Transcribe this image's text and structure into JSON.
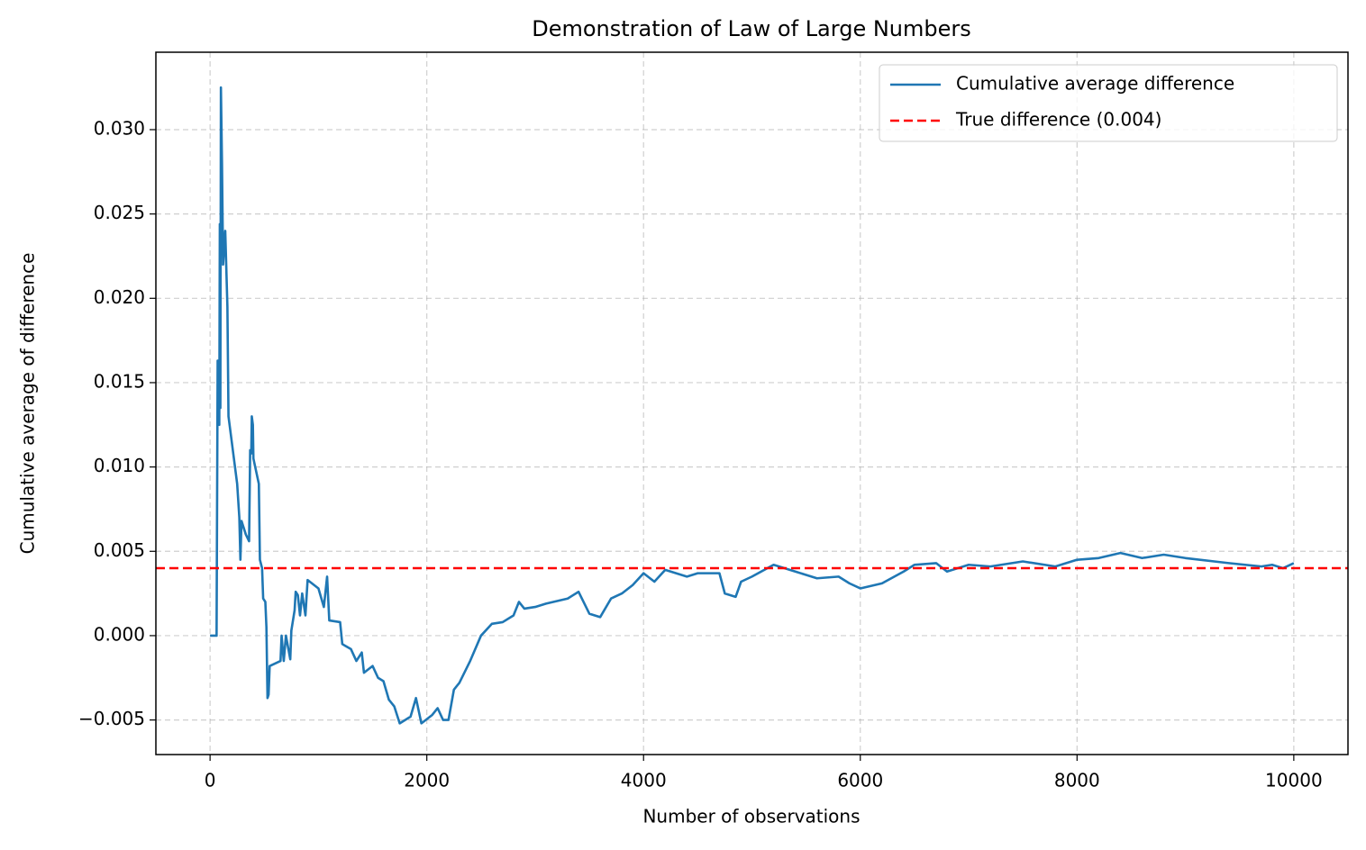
{
  "chart_data": {
    "type": "line",
    "title": "Demonstration of Law of Large Numbers",
    "x_label": "Number of observations",
    "y_label": "Cumulative average of difference",
    "x": [
      0,
      60,
      70,
      80,
      85,
      90,
      95,
      100,
      110,
      120,
      140,
      160,
      170,
      200,
      250,
      270,
      280,
      290,
      330,
      360,
      370,
      380,
      385,
      395,
      400,
      450,
      460,
      480,
      490,
      510,
      520,
      530,
      540,
      550,
      650,
      660,
      680,
      700,
      740,
      750,
      780,
      790,
      810,
      830,
      850,
      880,
      900,
      1000,
      1050,
      1080,
      1100,
      1200,
      1220,
      1300,
      1350,
      1400,
      1420,
      1500,
      1550,
      1600,
      1650,
      1700,
      1750,
      1850,
      1900,
      1950,
      2050,
      2100,
      2150,
      2200,
      2250,
      2300,
      2400,
      2500,
      2600,
      2700,
      2800,
      2850,
      2900,
      3000,
      3100,
      3300,
      3400,
      3500,
      3600,
      3700,
      3800,
      3900,
      4000,
      4100,
      4200,
      4400,
      4500,
      4700,
      4750,
      4850,
      4900,
      5000,
      5200,
      5400,
      5600,
      5800,
      5900,
      6000,
      6200,
      6400,
      6500,
      6700,
      6800,
      7000,
      7200,
      7500,
      7800,
      8000,
      8200,
      8400,
      8600,
      8800,
      9000,
      9400,
      9700,
      9800,
      9900,
      10000
    ],
    "series": [
      {
        "name": "Cumulative average difference",
        "color": "#1f77b4",
        "values": [
          0,
          0,
          0.0163,
          0.0163,
          0.0125,
          0.0244,
          0.0135,
          0.0325,
          0.028,
          0.022,
          0.024,
          0.0195,
          0.013,
          0.0115,
          0.009,
          0.007,
          0.0045,
          0.0068,
          0.006,
          0.0056,
          0.011,
          0.0108,
          0.013,
          0.0125,
          0.0105,
          0.009,
          0.0045,
          0.004,
          0.0022,
          0.002,
          0.0005,
          -0.0037,
          -0.0035,
          -0.0018,
          -0.0015,
          0,
          -0.0015,
          0,
          -0.0014,
          0.0003,
          0.0015,
          0.0026,
          0.0024,
          0.0012,
          0.0025,
          0.0012,
          0.0033,
          0.0028,
          0.0017,
          0.0035,
          0.0009,
          0.0008,
          -0.0005,
          -0.0008,
          -0.0015,
          -0.001,
          -0.0022,
          -0.0018,
          -0.0025,
          -0.0027,
          -0.0038,
          -0.0042,
          -0.0052,
          -0.0048,
          -0.0037,
          -0.0052,
          -0.0047,
          -0.0043,
          -0.005,
          -0.005,
          -0.0032,
          -0.0028,
          -0.0015,
          0,
          0.0007,
          0.0008,
          0.0012,
          0.002,
          0.0016,
          0.0017,
          0.0019,
          0.0022,
          0.0026,
          0.0013,
          0.0011,
          0.0022,
          0.0025,
          0.003,
          0.0037,
          0.0032,
          0.0039,
          0.0035,
          0.0037,
          0.0037,
          0.0025,
          0.0023,
          0.0032,
          0.0035,
          0.0042,
          0.0038,
          0.0034,
          0.0035,
          0.0031,
          0.0028,
          0.0031,
          0.0038,
          0.0042,
          0.0043,
          0.0038,
          0.0042,
          0.0041,
          0.0044,
          0.0041,
          0.0045,
          0.0046,
          0.0049,
          0.0046,
          0.0048,
          0.0046,
          0.0043,
          0.0041,
          0.0042,
          0.004,
          0.0043
        ]
      }
    ],
    "reference_line": {
      "name": "True difference (0.004)",
      "value": 0.004,
      "color": "#ff0000"
    },
    "xlim": [
      -500,
      10500
    ],
    "xticks": [
      0,
      2000,
      4000,
      6000,
      8000,
      10000
    ],
    "ylim": [
      -0.00705,
      0.03459
    ],
    "yticks": [
      {
        "value": -0.005,
        "label": "−0.005"
      },
      {
        "value": 0,
        "label": "0.000"
      },
      {
        "value": 0.005,
        "label": "0.005"
      },
      {
        "value": 0.01,
        "label": "0.010"
      },
      {
        "value": 0.015,
        "label": "0.015"
      },
      {
        "value": 0.02,
        "label": "0.020"
      },
      {
        "value": 0.025,
        "label": "0.025"
      },
      {
        "value": 0.03,
        "label": "0.030"
      }
    ],
    "grid": true,
    "legend": "upper right"
  }
}
